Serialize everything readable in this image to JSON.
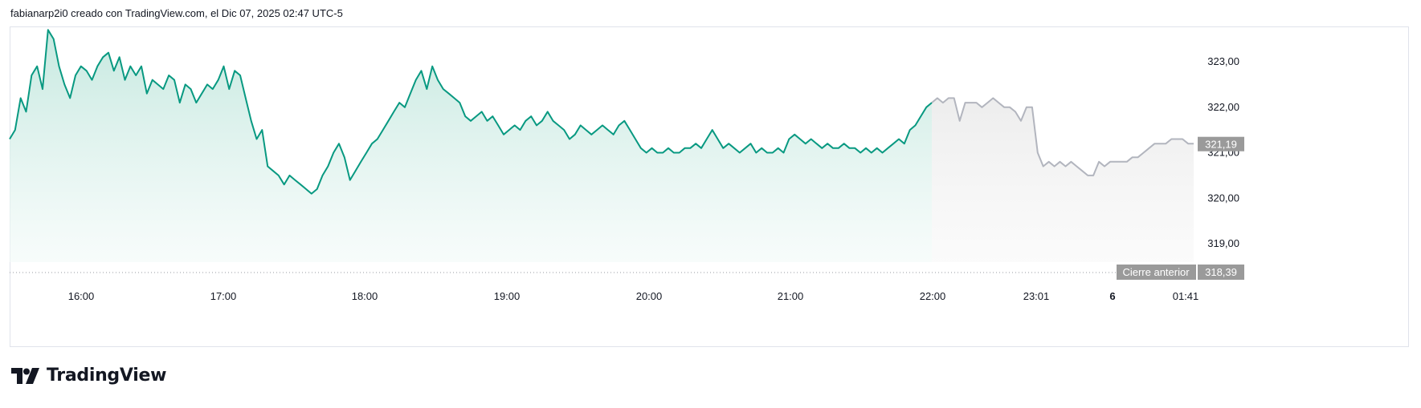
{
  "header": {
    "caption": "fabianarp2i0 creado con TradingView.com, el Dic 07, 2025 02:47 UTC-5"
  },
  "brand": {
    "name": "TradingView"
  },
  "colors": {
    "session_line": "#089981",
    "session_fill": "#d9f0ea",
    "extended_line": "#b2b5be",
    "extended_fill": "#f0f0f0",
    "badge_bg": "#9a9a9a",
    "prev_close_bg": "#9a9a9a"
  },
  "chart_data": {
    "type": "area",
    "x_tick_labels": [
      "16:00",
      "17:00",
      "18:00",
      "19:00",
      "20:00",
      "21:00",
      "22:00",
      "23:01",
      "6",
      "01:41"
    ],
    "y_tick_labels": [
      "323,00",
      "322,00",
      "321,00",
      "320,00",
      "319,00"
    ],
    "y_ticks": [
      323,
      322,
      321,
      320,
      319
    ],
    "ylim": [
      318.2,
      323.8
    ],
    "last_price": 321.19,
    "last_price_label": "321,19",
    "prev_close": 318.39,
    "prev_close_label": "318,39",
    "prev_close_text": "Cierre anterior",
    "series": [
      {
        "session": "regular",
        "time_range": [
          "15:30",
          "22:00"
        ],
        "values": [
          321.3,
          321.5,
          322.2,
          321.9,
          322.7,
          322.9,
          322.4,
          323.7,
          323.5,
          322.9,
          322.5,
          322.2,
          322.7,
          322.9,
          322.8,
          322.6,
          322.9,
          323.1,
          323.2,
          322.8,
          323.1,
          322.6,
          322.9,
          322.7,
          322.9,
          322.3,
          322.6,
          322.5,
          322.4,
          322.7,
          322.6,
          322.1,
          322.5,
          322.4,
          322.1,
          322.3,
          322.5,
          322.4,
          322.6,
          322.9,
          322.4,
          322.8,
          322.7,
          322.2,
          321.7,
          321.3,
          321.5,
          320.7,
          320.6,
          320.5,
          320.3,
          320.5,
          320.4,
          320.3,
          320.2,
          320.1,
          320.2,
          320.5,
          320.7,
          321.0,
          321.2,
          320.9,
          320.4,
          320.6,
          320.8,
          321.0,
          321.2,
          321.3,
          321.5,
          321.7,
          321.9,
          322.1,
          322.0,
          322.3,
          322.6,
          322.8,
          322.4,
          322.9,
          322.6,
          322.4,
          322.3,
          322.2,
          322.1,
          321.8,
          321.7,
          321.8,
          321.9,
          321.7,
          321.8,
          321.6,
          321.4,
          321.5,
          321.6,
          321.5,
          321.7,
          321.8,
          321.6,
          321.7,
          321.9,
          321.7,
          321.6,
          321.5,
          321.3,
          321.4,
          321.6,
          321.5,
          321.4,
          321.5,
          321.6,
          321.5,
          321.4,
          321.6,
          321.7,
          321.5,
          321.3,
          321.1,
          321.0,
          321.1,
          321.0,
          321.0,
          321.1,
          321.0,
          321.0,
          321.1,
          321.1,
          321.2,
          321.1,
          321.3,
          321.5,
          321.3,
          321.1,
          321.2,
          321.1,
          321.0,
          321.1,
          321.2,
          321.0,
          321.1,
          321.0,
          321.0,
          321.1,
          321.0,
          321.3,
          321.4,
          321.3,
          321.2,
          321.3,
          321.2,
          321.1,
          321.2,
          321.1,
          321.1,
          321.2,
          321.1,
          321.1,
          321.0,
          321.1,
          321.0,
          321.1,
          321.0,
          321.1,
          321.2,
          321.3,
          321.2,
          321.5,
          321.6,
          321.8,
          322.0,
          322.1
        ]
      },
      {
        "session": "extended",
        "time_range": [
          "22:00",
          "01:41"
        ],
        "values": [
          322.1,
          322.2,
          322.1,
          322.2,
          322.2,
          321.7,
          322.1,
          322.1,
          322.1,
          322.0,
          322.1,
          322.2,
          322.1,
          322.0,
          322.0,
          321.9,
          321.7,
          322.0,
          322.0,
          321.0,
          320.7,
          320.8,
          320.7,
          320.8,
          320.7,
          320.8,
          320.7,
          320.6,
          320.5,
          320.5,
          320.8,
          320.7,
          320.8,
          320.8,
          320.8,
          320.8,
          320.9,
          320.9,
          321.0,
          321.1,
          321.2,
          321.2,
          321.2,
          321.3,
          321.3,
          321.3,
          321.2,
          321.2
        ]
      }
    ]
  }
}
